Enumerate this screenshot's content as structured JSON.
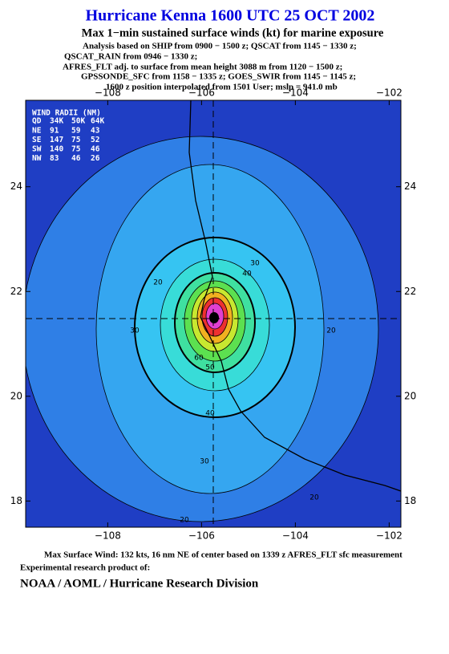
{
  "title": "Hurricane Kenna 1600 UTC 25 OCT 2002",
  "subtitle": "Max 1−min sustained surface winds (kt) for marine exposure",
  "notes": [
    "Analysis based on  SHIP from 0900 − 1500 z;  QSCAT from 1145 − 1330 z;",
    "QSCAT_RAIN from 0946 − 1330 z;",
    "AFRES_FLT adj. to surface from mean height 3088 m from 1120 − 1500 z;",
    "GPSSONDE_SFC from 1158 − 1335 z;  GOES_SWIR from 1145 − 1145 z;",
    "1600 z position interpolated from 1501 User; mslp = 941.0 mb"
  ],
  "map": {
    "xlim": [
      -109.75,
      -101.75
    ],
    "ylim": [
      17.5,
      25.65
    ],
    "xticks": [
      {
        "value": -108,
        "label": "−108"
      },
      {
        "value": -106,
        "label": "−106"
      },
      {
        "value": -104,
        "label": "−104"
      },
      {
        "value": -102,
        "label": "−102"
      }
    ],
    "yticks": [
      18,
      20,
      22,
      24
    ]
  },
  "wind_radii": {
    "title": "WIND RADII (NM)",
    "header": [
      "QD",
      "34K",
      "50K",
      "64K"
    ],
    "rows": [
      [
        "NE",
        91,
        59,
        43
      ],
      [
        "SE",
        147,
        75,
        52
      ],
      [
        "SW",
        140,
        75,
        46
      ],
      [
        "NW",
        83,
        46,
        26
      ]
    ]
  },
  "contour_labels": [
    20,
    30,
    40,
    20,
    30,
    60,
    50,
    40,
    30,
    20,
    20
  ],
  "footer": {
    "max_wind": "Max Surface Wind: 132 kts, 16 nm NE of center based on 1339 z AFRES_FLT sfc measurement",
    "credit": "Experimental research product of:",
    "org": "NOAA / AOML / Hurricane Research Division"
  }
}
